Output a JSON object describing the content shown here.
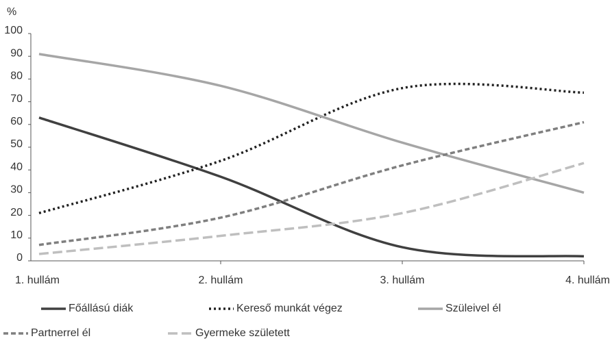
{
  "chart_data": {
    "type": "line",
    "y_label": "%",
    "categories": [
      "1. hullám",
      "2. hullám",
      "3. hullám",
      "4. hullám"
    ],
    "series": [
      {
        "name": "Főállású diák",
        "color": "#404040",
        "dash": "solid",
        "values": [
          63,
          37,
          6,
          2
        ]
      },
      {
        "name": "Kereső munkát végez",
        "color": "#222222",
        "dash": "dotted",
        "values": [
          21,
          44,
          76,
          74
        ]
      },
      {
        "name": "Szüleivel él",
        "color": "#a6a6a6",
        "dash": "solid",
        "values": [
          91,
          77,
          52,
          30
        ]
      },
      {
        "name": "Partnerrel él",
        "color": "#7f7f7f",
        "dash": "dashed",
        "values": [
          7,
          19,
          42,
          61
        ]
      },
      {
        "name": "Gyermeke született",
        "color": "#bfbfbf",
        "dash": "longdash",
        "values": [
          3,
          11,
          21,
          43
        ]
      }
    ],
    "ylim": [
      0,
      100
    ],
    "yticks": [
      0,
      10,
      20,
      30,
      40,
      50,
      60,
      70,
      80,
      90,
      100
    ],
    "grid": false
  }
}
